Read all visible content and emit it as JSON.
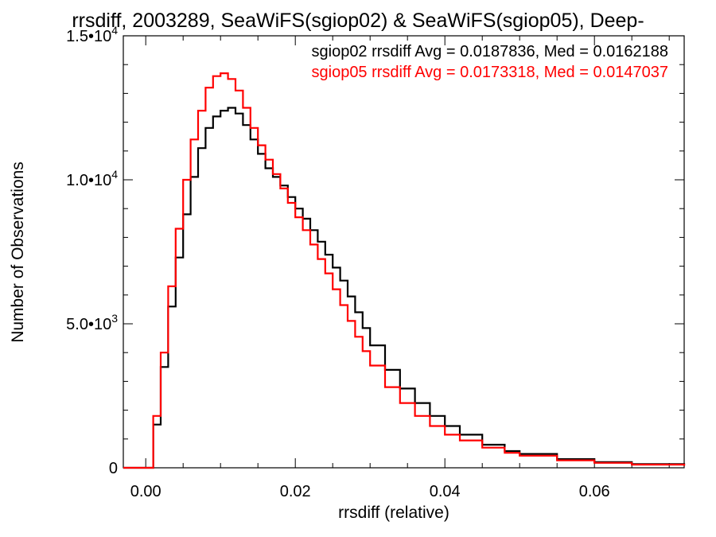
{
  "chart_data": {
    "type": "line",
    "title": "rrsdiff, 2003289, SeaWiFS(sgiop02) & SeaWiFS(sgiop05), Deep-",
    "xlabel": "rrsdiff (relative)",
    "ylabel": "Number of Observations",
    "xlim": [
      -0.003,
      0.072
    ],
    "ylim": [
      0,
      15000
    ],
    "x_ticks": [
      {
        "value": 0.0,
        "label": "0.00"
      },
      {
        "value": 0.02,
        "label": "0.02"
      },
      {
        "value": 0.04,
        "label": "0.04"
      },
      {
        "value": 0.06,
        "label": "0.06"
      }
    ],
    "y_ticks": [
      {
        "value": 0,
        "mantissa": "0",
        "exponent": ""
      },
      {
        "value": 5000,
        "mantissa": "5.0•10",
        "exponent": "3"
      },
      {
        "value": 10000,
        "mantissa": "1.0•10",
        "exponent": "4"
      },
      {
        "value": 15000,
        "mantissa": "1.5•10",
        "exponent": "4"
      }
    ],
    "grid": false,
    "legend_position": "top-right",
    "annotations": [
      "sgiop02 rrsdiff Avg = 0.0187836, Med = 0.0162188",
      "sgiop05 rrsdiff Avg = 0.0173318, Med = 0.0147037"
    ],
    "series": [
      {
        "color": "#000000",
        "x": [
          -0.003,
          0.0,
          0.001,
          0.002,
          0.003,
          0.004,
          0.005,
          0.006,
          0.007,
          0.008,
          0.009,
          0.01,
          0.011,
          0.012,
          0.013,
          0.014,
          0.015,
          0.016,
          0.017,
          0.018,
          0.019,
          0.02,
          0.021,
          0.022,
          0.023,
          0.024,
          0.025,
          0.026,
          0.027,
          0.028,
          0.029,
          0.03,
          0.032,
          0.034,
          0.036,
          0.038,
          0.04,
          0.042,
          0.045,
          0.048,
          0.05,
          0.055,
          0.06,
          0.065,
          0.072
        ],
        "y": [
          0,
          0,
          1500,
          3500,
          5600,
          7300,
          8800,
          10100,
          11100,
          11800,
          12200,
          12400,
          12500,
          12300,
          11900,
          11400,
          10900,
          10400,
          10100,
          9800,
          9400,
          9000,
          8650,
          8250,
          7850,
          7400,
          6950,
          6500,
          5950,
          5400,
          4850,
          4250,
          3400,
          2750,
          2250,
          1800,
          1450,
          1150,
          800,
          580,
          480,
          300,
          200,
          130,
          80
        ]
      },
      {
        "color": "#ff0000",
        "x": [
          -0.003,
          0.0,
          0.001,
          0.002,
          0.003,
          0.004,
          0.005,
          0.006,
          0.007,
          0.008,
          0.009,
          0.01,
          0.011,
          0.012,
          0.013,
          0.014,
          0.015,
          0.016,
          0.017,
          0.018,
          0.019,
          0.02,
          0.021,
          0.022,
          0.023,
          0.024,
          0.025,
          0.026,
          0.027,
          0.028,
          0.029,
          0.03,
          0.032,
          0.034,
          0.036,
          0.038,
          0.04,
          0.042,
          0.045,
          0.048,
          0.05,
          0.055,
          0.06,
          0.065,
          0.072
        ],
        "y": [
          0,
          0,
          1800,
          4000,
          6300,
          8300,
          10000,
          11400,
          12400,
          13200,
          13600,
          13700,
          13500,
          13100,
          12500,
          11800,
          11200,
          10700,
          10200,
          9700,
          9200,
          8700,
          8250,
          7750,
          7250,
          6750,
          6200,
          5650,
          5100,
          4550,
          4050,
          3550,
          2800,
          2250,
          1800,
          1450,
          1150,
          950,
          700,
          520,
          420,
          260,
          170,
          110,
          70
        ]
      }
    ]
  }
}
